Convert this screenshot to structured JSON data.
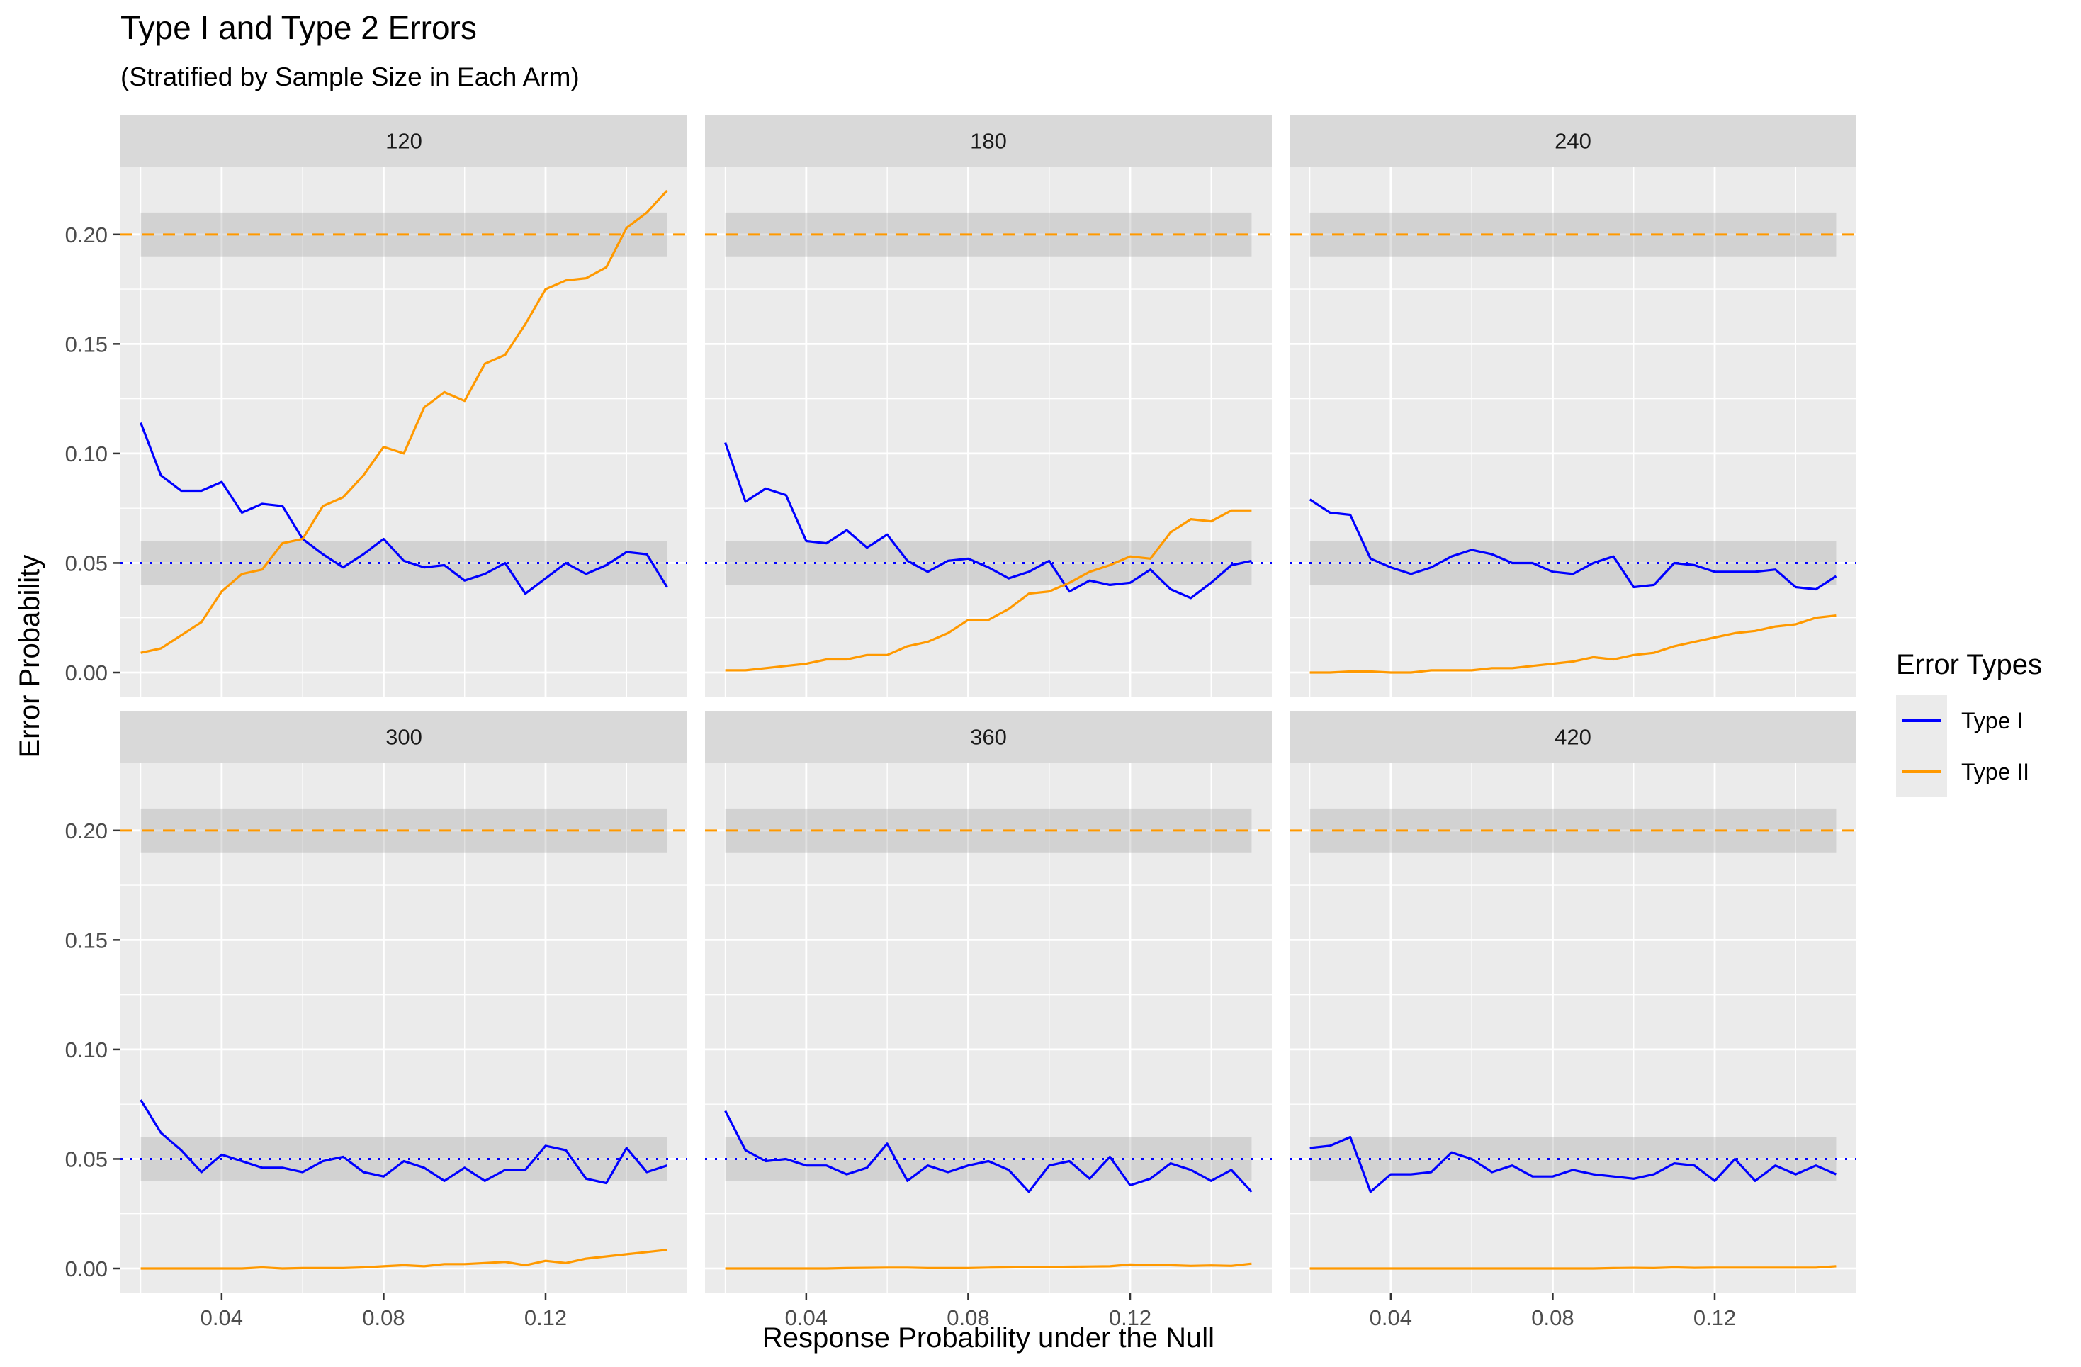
{
  "chart_data": {
    "type": "line",
    "title": "Type I and Type 2 Errors",
    "subtitle": "(Stratified by Sample Size in Each Arm)",
    "xlabel": "Response Probability under the Null",
    "ylabel": "Error Probability",
    "xlim": [
      0.015,
      0.155
    ],
    "ylim": [
      -0.011,
      0.231
    ],
    "x_ticks": [
      0.04,
      0.08,
      0.12
    ],
    "x_tick_labels": [
      "0.04",
      "0.08",
      "0.12"
    ],
    "y_ticks": [
      0.0,
      0.05,
      0.1,
      0.15,
      0.2
    ],
    "y_tick_labels": [
      "0.00",
      "0.05",
      "0.10",
      "0.15",
      "0.20"
    ],
    "grid": true,
    "legend": {
      "title": "Error Types",
      "placement": "right",
      "entries": [
        {
          "label": "Type I",
          "color": "#0000ff"
        },
        {
          "label": "Type II",
          "color": "#ff9900"
        }
      ]
    },
    "reference_lines": [
      {
        "y": 0.05,
        "style": "dotted",
        "color": "#0000ff"
      },
      {
        "y": 0.2,
        "style": "dashed",
        "color": "#ff9900"
      }
    ],
    "reference_bands": [
      {
        "ymin": 0.04,
        "ymax": 0.06,
        "xmin": 0.02,
        "xmax": 0.15
      },
      {
        "ymin": 0.19,
        "ymax": 0.21,
        "xmin": 0.02,
        "xmax": 0.15
      }
    ],
    "x": [
      0.02,
      0.025,
      0.03,
      0.035,
      0.04,
      0.045,
      0.05,
      0.055,
      0.06,
      0.065,
      0.07,
      0.075,
      0.08,
      0.085,
      0.09,
      0.095,
      0.1,
      0.105,
      0.11,
      0.115,
      0.12,
      0.125,
      0.13,
      0.135,
      0.14,
      0.145,
      0.15
    ],
    "panels": [
      {
        "label": "120",
        "type1": [
          0.114,
          0.09,
          0.083,
          0.083,
          0.087,
          0.073,
          0.077,
          0.076,
          0.061,
          0.054,
          0.048,
          0.054,
          0.061,
          0.051,
          0.048,
          0.049,
          0.042,
          0.045,
          0.05,
          0.036,
          0.043,
          0.05,
          0.045,
          0.049,
          0.055,
          0.054,
          0.039
        ],
        "type2": [
          0.009,
          0.011,
          0.017,
          0.023,
          0.037,
          0.045,
          0.047,
          0.059,
          0.061,
          0.076,
          0.08,
          0.09,
          0.103,
          0.1,
          0.121,
          0.128,
          0.124,
          0.141,
          0.145,
          0.159,
          0.175,
          0.179,
          0.18,
          0.185,
          0.203,
          0.21,
          0.22
        ]
      },
      {
        "label": "180",
        "type1": [
          0.105,
          0.078,
          0.084,
          0.081,
          0.06,
          0.059,
          0.065,
          0.057,
          0.063,
          0.051,
          0.046,
          0.051,
          0.052,
          0.048,
          0.043,
          0.046,
          0.051,
          0.037,
          0.042,
          0.04,
          0.041,
          0.047,
          0.038,
          0.034,
          0.041,
          0.049,
          0.051
        ],
        "type2": [
          0.001,
          0.001,
          0.002,
          0.003,
          0.004,
          0.006,
          0.006,
          0.008,
          0.008,
          0.012,
          0.014,
          0.018,
          0.024,
          0.024,
          0.029,
          0.036,
          0.037,
          0.041,
          0.046,
          0.049,
          0.053,
          0.052,
          0.064,
          0.07,
          0.069,
          0.074,
          0.074
        ]
      },
      {
        "label": "240",
        "type1": [
          0.079,
          0.073,
          0.072,
          0.052,
          0.048,
          0.045,
          0.048,
          0.053,
          0.056,
          0.054,
          0.05,
          0.05,
          0.046,
          0.045,
          0.05,
          0.053,
          0.039,
          0.04,
          0.05,
          0.049,
          0.046,
          0.046,
          0.046,
          0.047,
          0.039,
          0.038,
          0.044
        ],
        "type2": [
          0.0,
          0.0,
          0.0005,
          0.0005,
          0.0,
          0.0,
          0.001,
          0.001,
          0.001,
          0.002,
          0.002,
          0.003,
          0.004,
          0.005,
          0.007,
          0.006,
          0.008,
          0.009,
          0.012,
          0.014,
          0.016,
          0.018,
          0.019,
          0.021,
          0.022,
          0.025,
          0.026
        ]
      },
      {
        "label": "300",
        "type1": [
          0.077,
          0.062,
          0.054,
          0.044,
          0.052,
          0.049,
          0.046,
          0.046,
          0.044,
          0.049,
          0.051,
          0.044,
          0.042,
          0.049,
          0.046,
          0.04,
          0.046,
          0.04,
          0.045,
          0.045,
          0.056,
          0.054,
          0.041,
          0.039,
          0.055,
          0.044,
          0.047
        ],
        "type2": [
          0.0,
          0.0,
          0.0,
          0.0,
          0.0,
          0.0,
          0.0005,
          0.0,
          0.0002,
          0.0002,
          0.0002,
          0.0005,
          0.001,
          0.0015,
          0.001,
          0.002,
          0.002,
          0.0025,
          0.003,
          0.0015,
          0.0035,
          0.0025,
          0.0045,
          0.0055,
          0.0065,
          0.0075,
          0.0085
        ]
      },
      {
        "label": "360",
        "type1": [
          0.072,
          0.054,
          0.049,
          0.05,
          0.047,
          0.047,
          0.043,
          0.046,
          0.057,
          0.04,
          0.047,
          0.044,
          0.047,
          0.049,
          0.045,
          0.035,
          0.047,
          0.049,
          0.041,
          0.051,
          0.038,
          0.041,
          0.048,
          0.045,
          0.04,
          0.045,
          0.035
        ],
        "type2": [
          0.0,
          0.0,
          0.0,
          0.0,
          0.0,
          0.0,
          0.0002,
          0.0003,
          0.0004,
          0.0004,
          0.0002,
          0.0002,
          0.0002,
          0.0004,
          0.0005,
          0.0006,
          0.0007,
          0.0008,
          0.0009,
          0.001,
          0.0018,
          0.0015,
          0.0015,
          0.0012,
          0.0014,
          0.0012,
          0.0022
        ]
      },
      {
        "label": "420",
        "type1": [
          0.055,
          0.056,
          0.06,
          0.035,
          0.043,
          0.043,
          0.044,
          0.053,
          0.05,
          0.044,
          0.047,
          0.042,
          0.042,
          0.045,
          0.043,
          0.042,
          0.041,
          0.043,
          0.048,
          0.047,
          0.04,
          0.05,
          0.04,
          0.047,
          0.043,
          0.047,
          0.043
        ],
        "type2": [
          0.0,
          0.0,
          0.0,
          0.0,
          0.0,
          0.0,
          0.0,
          0.0,
          0.0,
          0.0,
          0.0,
          0.0,
          0.0,
          0.0,
          0.0,
          0.0002,
          0.0003,
          0.0002,
          0.0005,
          0.0003,
          0.0004,
          0.0004,
          0.0004,
          0.0004,
          0.0004,
          0.0004,
          0.001
        ]
      }
    ]
  }
}
